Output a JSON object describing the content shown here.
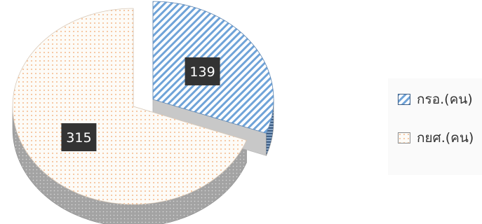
{
  "chart_data": {
    "type": "pie",
    "style": "3d-exploded",
    "categories": [
      "กรอ.(คน)",
      "กยศ.(คน)"
    ],
    "values": [
      139,
      315
    ],
    "data_labels": [
      "139",
      "315"
    ],
    "legend_position": "right",
    "colors": {
      "kro_pattern_fg": "#6fa3d8",
      "kro_pattern_bg": "#ffffff",
      "kro_side": "#3e5f86",
      "kys_dots": "#f2a66b",
      "kys_bg": "#fdfbf7",
      "kys_side": "#9a9a9a",
      "inner_wall": "#c8c8c8",
      "data_label_bg": "#333333",
      "data_label_text": "#ffffff"
    }
  }
}
